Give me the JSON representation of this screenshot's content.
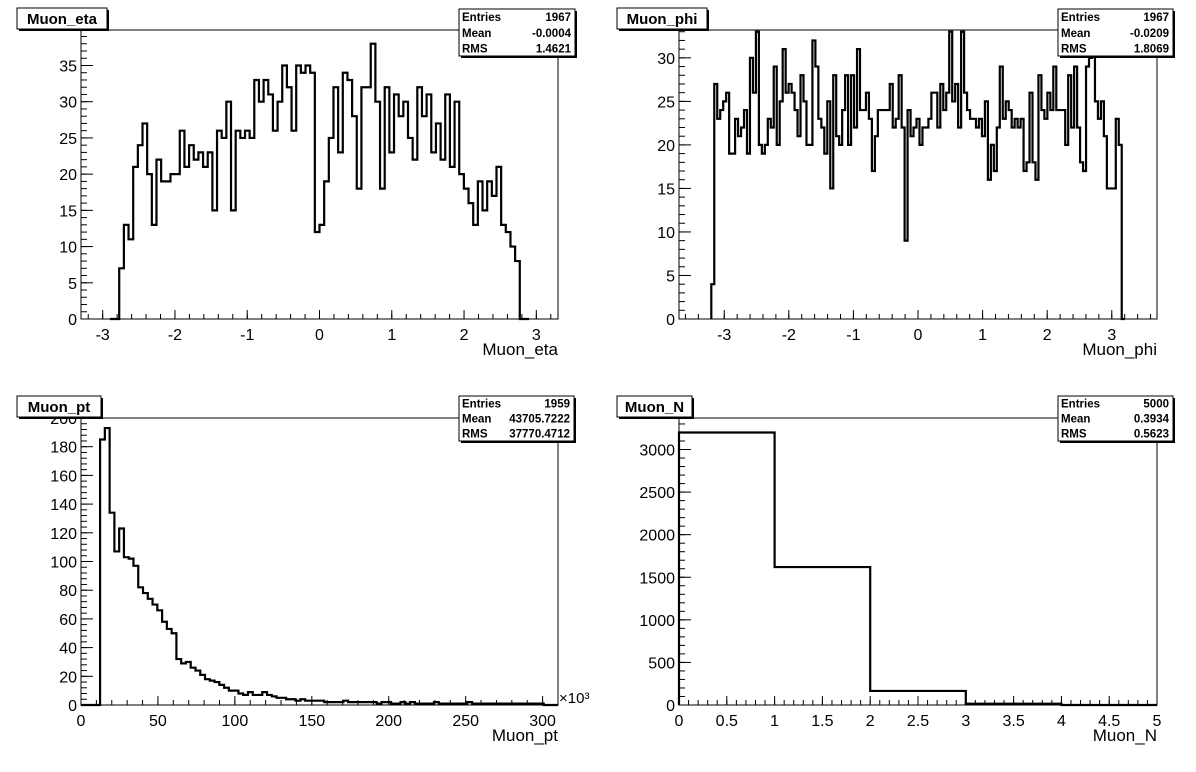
{
  "chart_data": [
    {
      "type": "bar",
      "title": "Muon_eta",
      "xlabel": "Muon_eta",
      "ylabel": "",
      "xlim": [
        -3.3,
        3.3
      ],
      "ylim": [
        0,
        39.9
      ],
      "xticks": [
        -3,
        -2,
        -1,
        0,
        1,
        2,
        3
      ],
      "yticks": [
        0,
        5,
        10,
        15,
        20,
        25,
        30,
        35
      ],
      "bin_range": [
        -2.9,
        2.9
      ],
      "values": [
        0,
        0,
        7,
        13,
        11,
        21,
        24,
        27,
        20,
        13,
        22,
        19,
        19,
        20,
        20,
        26,
        21,
        24,
        22,
        23,
        21,
        23,
        15,
        26,
        25,
        30,
        15,
        26,
        25,
        26,
        25,
        33,
        30,
        33,
        31,
        26,
        30,
        35,
        32,
        26,
        35,
        34,
        35,
        34,
        12,
        13,
        19,
        25,
        32,
        23,
        34,
        33,
        28,
        18,
        32,
        32,
        38,
        30,
        18,
        32,
        23,
        31,
        28,
        30,
        25,
        22,
        32,
        28,
        31,
        23,
        27,
        22,
        31,
        21,
        30,
        20,
        18,
        16,
        13,
        19,
        15,
        19,
        17,
        21,
        13,
        12,
        10,
        8,
        0,
        0
      ],
      "stats": [
        {
          "label": "Entries",
          "value": "1967"
        },
        {
          "label": "Mean",
          "value": "-0.0004"
        },
        {
          "label": "RMS",
          "value": "1.4621"
        }
      ]
    },
    {
      "type": "bar",
      "title": "Muon_phi",
      "xlabel": "Muon_phi",
      "ylabel": "",
      "xlim": [
        -3.7,
        3.7
      ],
      "ylim": [
        0,
        33.2
      ],
      "xticks": [
        -3,
        -2,
        -1,
        0,
        1,
        2,
        3
      ],
      "yticks": [
        0,
        5,
        10,
        15,
        20,
        25,
        30
      ],
      "bin_range": [
        -3.2,
        3.2
      ],
      "values": [
        4,
        27,
        23,
        24,
        25,
        26,
        19,
        19,
        23,
        21,
        22,
        24,
        19,
        30,
        26,
        33,
        20,
        19,
        20,
        23,
        22,
        29,
        20,
        25,
        31,
        26,
        27,
        26,
        24,
        21,
        28,
        25,
        20,
        20,
        32,
        29,
        23,
        22,
        19,
        25,
        15,
        28,
        21,
        20,
        24,
        28,
        20,
        28,
        22,
        31,
        24,
        24,
        26,
        23,
        17,
        21,
        24,
        24,
        24,
        24,
        27,
        22,
        23,
        28,
        22,
        9,
        24,
        21,
        22,
        23,
        20,
        22,
        22,
        23,
        26,
        26,
        22,
        27,
        24,
        26,
        33,
        25,
        27,
        22,
        33,
        26,
        24,
        23,
        23,
        22,
        23,
        21,
        25,
        16,
        20,
        17,
        22,
        29,
        23,
        25,
        24,
        22,
        23,
        22,
        23,
        17,
        18,
        26,
        18,
        16,
        28,
        24,
        23,
        26,
        24,
        29,
        24,
        24,
        24,
        20,
        28,
        22,
        29,
        22,
        18,
        17,
        29,
        30,
        31,
        25,
        23,
        25,
        21,
        15,
        15,
        15,
        23,
        20,
        0
      ],
      "stats": [
        {
          "label": "Entries",
          "value": "1967"
        },
        {
          "label": "Mean",
          "value": "-0.0209"
        },
        {
          "label": "RMS",
          "value": "1.8069"
        }
      ]
    },
    {
      "type": "bar",
      "title": "Muon_pt",
      "xlabel": "Muon_pt",
      "ylabel": "",
      "xlim": [
        0,
        310
      ],
      "ylim": [
        0,
        200
      ],
      "xticks": [
        0,
        50,
        100,
        150,
        200,
        250,
        300
      ],
      "yticks": [
        0,
        20,
        40,
        60,
        80,
        100,
        120,
        140,
        160,
        180,
        200
      ],
      "x_multiplier": "×10³",
      "bin_width": 3.1,
      "values": [
        0,
        0,
        0,
        0,
        185,
        193,
        134,
        107,
        123,
        103,
        102,
        97,
        82,
        78,
        74,
        70,
        66,
        58,
        53,
        50,
        32,
        29,
        30,
        26,
        24,
        21,
        18,
        17,
        16,
        14,
        12,
        10,
        10,
        8,
        7,
        9,
        7,
        7,
        9,
        7,
        6,
        5,
        5,
        4,
        4,
        3,
        4,
        3,
        3,
        3,
        3,
        2,
        2,
        2,
        2,
        3,
        2,
        2,
        2,
        2,
        2,
        2,
        1,
        2,
        2,
        1,
        1,
        2,
        1,
        2,
        1,
        1,
        1,
        1,
        2,
        1,
        1,
        1,
        1,
        1,
        1,
        2,
        1,
        1,
        1,
        1,
        1,
        1,
        1,
        1,
        1,
        1,
        1,
        1,
        1,
        1,
        1,
        0,
        0,
        0
      ],
      "stats": [
        {
          "label": "Entries",
          "value": "1959"
        },
        {
          "label": "Mean",
          "value": "43705.7222"
        },
        {
          "label": "RMS",
          "value": "37770.4712"
        }
      ]
    },
    {
      "type": "bar",
      "title": "Muon_N",
      "xlabel": "Muon_N",
      "ylabel": "",
      "xlim": [
        0,
        5
      ],
      "ylim": [
        0,
        3370
      ],
      "xticks": [
        0,
        0.5,
        1,
        1.5,
        2,
        2.5,
        3,
        3.5,
        4,
        4.5,
        5
      ],
      "yticks": [
        0,
        500,
        1000,
        1500,
        2000,
        2500,
        3000
      ],
      "bin_range": [
        0,
        5
      ],
      "values": [
        3200,
        1620,
        165,
        15,
        0
      ],
      "stats": [
        {
          "label": "Entries",
          "value": "5000"
        },
        {
          "label": "Mean",
          "value": "0.3934"
        },
        {
          "label": "RMS",
          "value": "0.5623"
        }
      ]
    }
  ]
}
